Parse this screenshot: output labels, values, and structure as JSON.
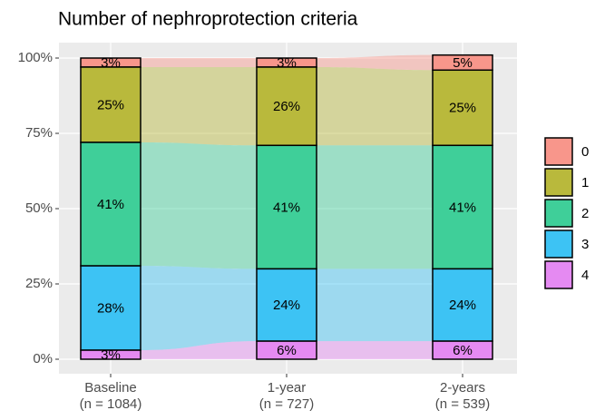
{
  "chart_data": {
    "type": "alluvial",
    "title": "Number of nephroprotection criteria",
    "categories": [
      "Baseline",
      "1-year",
      "2-years"
    ],
    "category_notes": [
      "(n = 1084)",
      "(n = 727)",
      "(n = 539)"
    ],
    "series": [
      {
        "name": "0",
        "color": "#f8968b",
        "values": [
          3,
          3,
          5
        ],
        "value_labels": [
          "3%",
          "3%",
          "5%"
        ]
      },
      {
        "name": "1",
        "color": "#b9b93c",
        "values": [
          25,
          26,
          25
        ],
        "value_labels": [
          "25%",
          "26%",
          "25%"
        ]
      },
      {
        "name": "2",
        "color": "#3fcf99",
        "values": [
          41,
          41,
          41
        ],
        "value_labels": [
          "41%",
          "41%",
          "41%"
        ]
      },
      {
        "name": "3",
        "color": "#3dc3f4",
        "values": [
          28,
          24,
          24
        ],
        "value_labels": [
          "28%",
          "24%",
          "24%"
        ]
      },
      {
        "name": "4",
        "color": "#e58af2",
        "values": [
          3,
          6,
          6
        ],
        "value_labels": [
          "3%",
          "6%",
          "6%"
        ]
      }
    ],
    "ylim": [
      0,
      100
    ],
    "yticks": [
      {
        "value": 0,
        "label": "0%"
      },
      {
        "value": 25,
        "label": "25%"
      },
      {
        "value": 50,
        "label": "50%"
      },
      {
        "value": 75,
        "label": "75%"
      },
      {
        "value": 100,
        "label": "100%"
      }
    ],
    "grid": true,
    "legend": "right"
  }
}
